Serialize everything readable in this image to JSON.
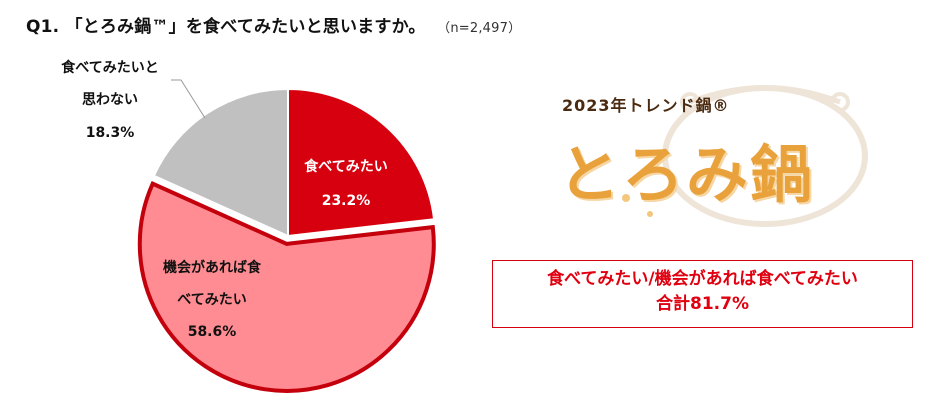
{
  "title": {
    "question": "Q1. 「とろみ鍋™」を食べてみたいと思いますか。",
    "sample": "（n=2,497）"
  },
  "chart_data": {
    "type": "pie",
    "title": "Q1. 「とろみ鍋™」を食べてみたいと思いますか。",
    "slices": [
      {
        "label_lines": [
          "食べてみたい"
        ],
        "value": 23.2,
        "value_label": "23.2%",
        "color": "#d7000f",
        "exploded": false
      },
      {
        "label_lines": [
          "機会があれば食",
          "べてみたい"
        ],
        "value": 58.6,
        "value_label": "58.6%",
        "color": "#ff8c92",
        "exploded": true
      },
      {
        "label_lines": [
          "食べてみたいと",
          "思わない"
        ],
        "value": 18.3,
        "value_label": "18.3%",
        "color": "#c0c0c0",
        "exploded": false
      }
    ]
  },
  "logo": {
    "year_text": "2023年トレンド鍋®",
    "name_text": "とろみ鍋"
  },
  "summary": {
    "line1": "食べてみたい/機会があれば食べてみたい",
    "line2": "合計81.7%"
  },
  "colors": {
    "accent": "#d7000f",
    "slice_border": "#c4000c",
    "logo_orange": "#e9a23b"
  }
}
